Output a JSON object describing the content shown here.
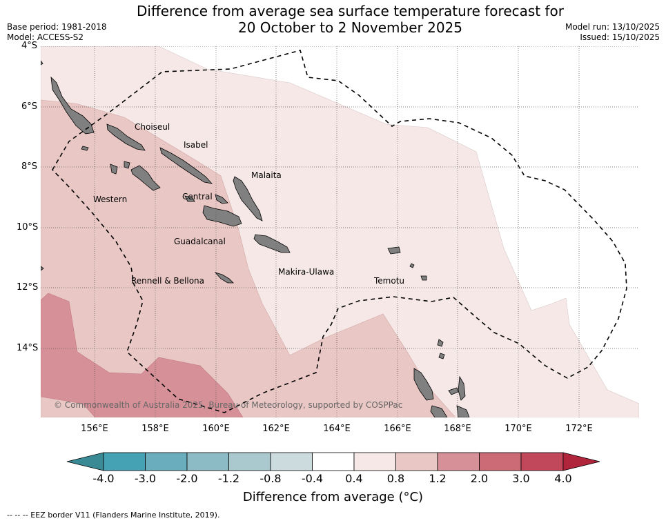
{
  "header": {
    "title_line1": "Difference from average sea surface temperature forecast for",
    "title_line2": "20 October to 2 November 2025",
    "base_period": "Base period: 1981-2018",
    "model": "Model: ACCESS-S2",
    "model_run": "Model run: 13/10/2025",
    "issued": "Issued: 15/10/2025"
  },
  "axes": {
    "lat_labels": [
      "4°S",
      "6°S",
      "8°S",
      "10°S",
      "12°S",
      "14°S"
    ],
    "lon_labels": [
      "156°E",
      "158°E",
      "160°E",
      "162°E",
      "164°E",
      "166°E",
      "168°E",
      "170°E",
      "172°E"
    ]
  },
  "regions": {
    "choiseul": "Choiseul",
    "isabel": "Isabel",
    "malaita": "Malaita",
    "western": "Western",
    "central": "Central",
    "guadalcanal": "Guadalcanal",
    "makira_ulawa": "Makira-Ulawa",
    "temotu": "Temotu",
    "rennell_bellona": "Rennell & Bellona"
  },
  "copyright": "© Commonwealth of Australia 2025, Bureau of Meteorology, supported by COSPPac",
  "colorbar": {
    "title": "Difference from average (°C)",
    "ticks": [
      "-4.0",
      "-3.0",
      "-2.0",
      "-1.2",
      "-0.8",
      "-0.4",
      "0.4",
      "0.8",
      "1.2",
      "2.0",
      "3.0",
      "4.0"
    ],
    "colors": {
      "below_min": "#3a8a96",
      "c1": "#45a2b4",
      "c2": "#6aaebe",
      "c3": "#8cbac5",
      "c4": "#a9c9cf",
      "c5": "#ccdcde",
      "c6": "#ffffff",
      "c7": "#f5e8e7",
      "c8": "#e9c7c4",
      "c9": "#d69098",
      "c10": "#cc6a76",
      "c11": "#c1475a",
      "above_max": "#b0243c"
    }
  },
  "map_colors": {
    "land": "#808080",
    "level_04_08": "#f5e8e7",
    "level_08_12": "#e9c7c4",
    "level_12_20": "#d69098",
    "eez": "#000000"
  },
  "footer": "--  --  -- EEZ border V11 (Flanders Marine Institute, 2019)."
}
